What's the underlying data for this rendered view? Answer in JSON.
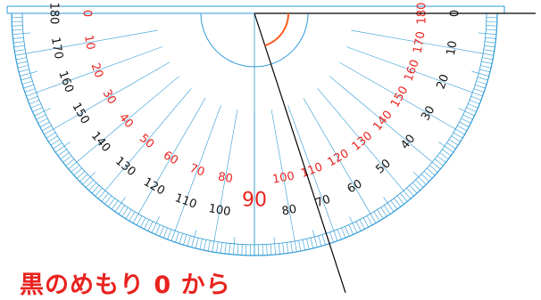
{
  "caption": "黒のめもり 0 から",
  "scale": {
    "black_labels": [
      "0",
      "10",
      "20",
      "30",
      "40",
      "50",
      "60",
      "70",
      "80",
      "90",
      "100",
      "110",
      "120",
      "130",
      "140",
      "150",
      "160",
      "170",
      "180"
    ],
    "red_labels": [
      "0",
      "10",
      "20",
      "30",
      "40",
      "50",
      "60",
      "70",
      "80",
      "90",
      "100",
      "110",
      "120",
      "130",
      "140",
      "150",
      "160",
      "170",
      "180"
    ],
    "center_label": "90"
  },
  "colors": {
    "scale_line": "#2e9bd6",
    "tick": "#2e9bd6",
    "black_text": "#111111",
    "red_text": "#e8231f",
    "arc": "#ff5a1f",
    "ray": "#000000"
  }
}
